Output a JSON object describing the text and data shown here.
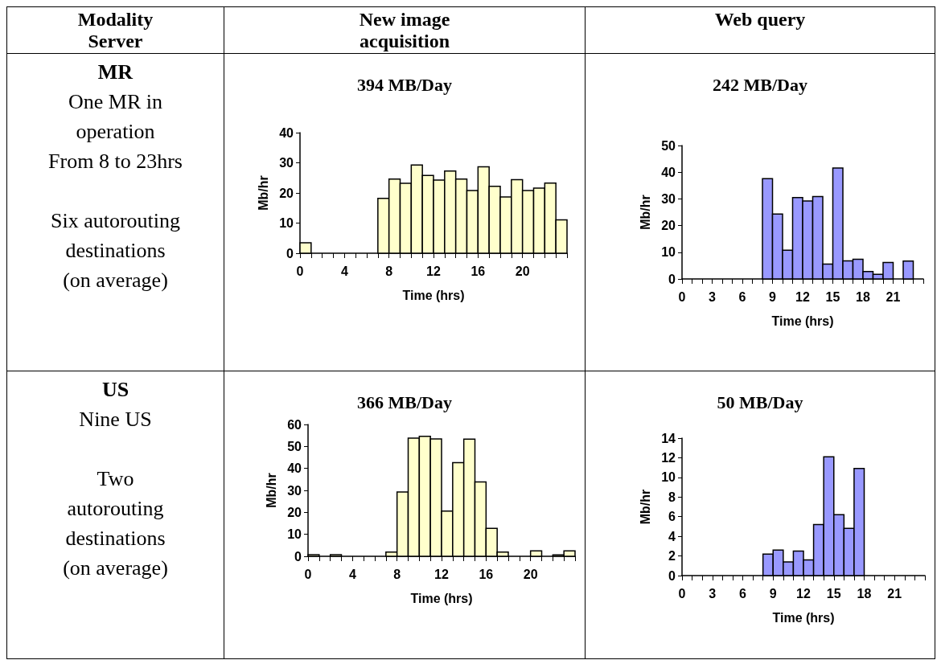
{
  "chart_data": [
    {
      "type": "other",
      "annotations": [
        "Modality\nServer",
        "New image\nacquisition",
        "Web query"
      ]
    },
    {
      "type": "other",
      "title": "MR",
      "annotations": [
        "One MR in\noperation\nFrom 8 to 23hrs",
        "Six autorouting\ndestinations\n(on average)"
      ]
    },
    {
      "type": "histogram",
      "title": "394 MB/Day",
      "xlabel": "Time (hrs)",
      "ylabel": "Mb/hr",
      "color": "#ffffcc",
      "bins": [
        0,
        1,
        2,
        3,
        4,
        5,
        6,
        7,
        8,
        9,
        10,
        11,
        12,
        13,
        14,
        15,
        16,
        17,
        18,
        19,
        20,
        21,
        22,
        23,
        24
      ],
      "values": [
        3.5,
        0,
        0,
        0,
        0,
        0,
        0,
        18.2,
        24.6,
        23.2,
        29.3,
        25.8,
        24.3,
        27.3,
        24.6,
        20.8,
        28.7,
        22.2,
        18.7,
        24.4,
        20.8,
        21.6,
        23.3,
        11.1
      ],
      "xlim": [
        0,
        24
      ],
      "xticks": [
        0,
        4,
        8,
        12,
        16,
        20
      ],
      "ylim": [
        0,
        40
      ],
      "yticks": [
        0,
        10,
        20,
        30,
        40
      ]
    },
    {
      "type": "histogram",
      "title": "242 MB/Day",
      "xlabel": "Time (hrs)",
      "ylabel": "Mb/hr",
      "color": "#9999ff",
      "bins": [
        0,
        1,
        2,
        3,
        4,
        5,
        6,
        7,
        8,
        9,
        10,
        11,
        12,
        13,
        14,
        15,
        16,
        17,
        18,
        19,
        20,
        21,
        22,
        23,
        24
      ],
      "values": [
        0,
        0,
        0,
        0,
        0,
        0,
        0,
        0,
        37.6,
        24.3,
        10.8,
        30.5,
        29.2,
        30.9,
        5.6,
        41.6,
        6.8,
        7.4,
        2.8,
        1.7,
        6.2,
        0,
        6.7,
        0
      ],
      "xlim": [
        0,
        24
      ],
      "xticks": [
        0,
        3,
        6,
        9,
        12,
        15,
        18,
        21
      ],
      "ylim": [
        0,
        50
      ],
      "yticks": [
        0,
        10,
        20,
        30,
        40,
        50
      ]
    },
    {
      "type": "other",
      "title": "US",
      "annotations": [
        "Nine US",
        "Two\nautorouting\ndestinations\n(on average)"
      ]
    },
    {
      "type": "histogram",
      "title": "366 MB/Day",
      "xlabel": "Time (hrs)",
      "ylabel": "Mb/hr",
      "color": "#ffffcc",
      "bins": [
        0,
        1,
        2,
        3,
        4,
        5,
        6,
        7,
        8,
        9,
        10,
        11,
        12,
        13,
        14,
        15,
        16,
        17,
        18,
        19,
        20,
        21,
        22,
        23,
        24
      ],
      "values": [
        0.7,
        0,
        0.7,
        0,
        0,
        0,
        0,
        1.9,
        29.3,
        53.8,
        54.6,
        53.4,
        20.6,
        42.6,
        53.3,
        33.8,
        12.7,
        1.9,
        0,
        0,
        2.5,
        0,
        0.6,
        2.5
      ],
      "xlim": [
        0,
        24
      ],
      "xticks": [
        0,
        4,
        8,
        12,
        16,
        20
      ],
      "ylim": [
        0,
        60
      ],
      "yticks": [
        0,
        10,
        20,
        30,
        40,
        50,
        60
      ]
    },
    {
      "type": "histogram",
      "title": "50 MB/Day",
      "xlabel": "Time (hrs)",
      "ylabel": "Mb/hr",
      "color": "#9999ff",
      "bins": [
        0,
        1,
        2,
        3,
        4,
        5,
        6,
        7,
        8,
        9,
        10,
        11,
        12,
        13,
        14,
        15,
        16,
        17,
        18,
        19,
        20,
        21,
        22,
        23,
        24
      ],
      "values": [
        0,
        0,
        0,
        0,
        0,
        0,
        0,
        0,
        2.2,
        2.6,
        1.4,
        2.5,
        1.6,
        5.2,
        12.1,
        6.2,
        4.8,
        10.9,
        0,
        0,
        0,
        0,
        0,
        0
      ],
      "xlim": [
        0,
        24
      ],
      "xticks": [
        0,
        3,
        6,
        9,
        12,
        15,
        18,
        21
      ],
      "ylim": [
        0,
        14
      ],
      "yticks": [
        0,
        2,
        4,
        6,
        8,
        10,
        12,
        14
      ]
    }
  ]
}
